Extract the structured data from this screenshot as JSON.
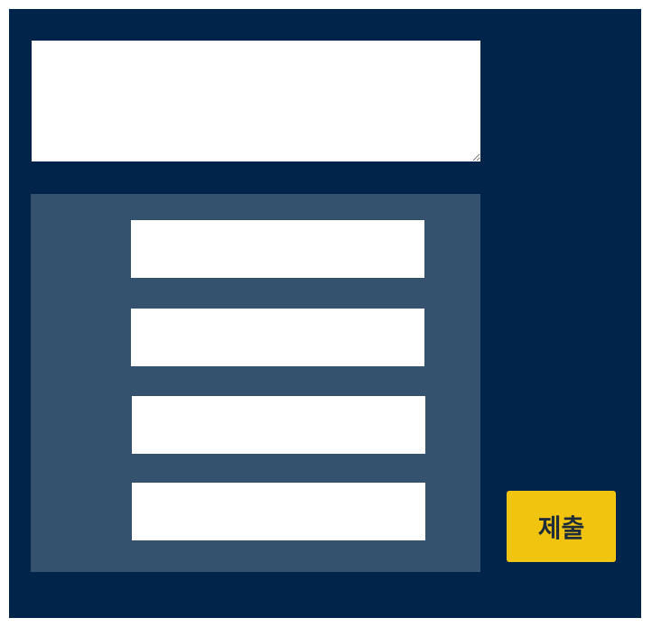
{
  "colors": {
    "frame_background": "#00244a",
    "panel_background": "#34526e",
    "field_background": "#ffffff",
    "button_background": "#f1c40f",
    "button_text": "#1f2d3a"
  },
  "top_field": {
    "value": ""
  },
  "options": [
    {
      "value": ""
    },
    {
      "value": ""
    },
    {
      "value": ""
    },
    {
      "value": ""
    }
  ],
  "submit_button": {
    "label": "제출"
  }
}
